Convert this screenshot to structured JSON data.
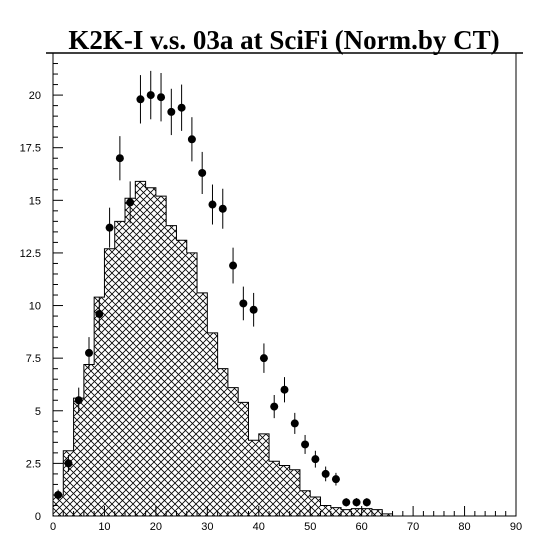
{
  "chart_data": {
    "type": "histogram_with_points",
    "title": "K2K-I v.s. 03a at SciFi (Norm.by CT)",
    "xlabel": "",
    "ylabel": "",
    "xlim": [
      0,
      90
    ],
    "ylim": [
      0,
      22
    ],
    "x_ticks": [
      "0",
      "10",
      "20",
      "30",
      "40",
      "50",
      "60",
      "70",
      "80",
      "90"
    ],
    "y_ticks": [
      "0",
      "2.5",
      "5",
      "7.5",
      "10",
      "12.5",
      "15",
      "17.5",
      "20"
    ],
    "histogram": {
      "fill": "cross-hatch",
      "bin_width": 2,
      "bins": [
        {
          "x": 0,
          "y": 1.0
        },
        {
          "x": 2,
          "y": 3.1
        },
        {
          "x": 4,
          "y": 5.6
        },
        {
          "x": 6,
          "y": 7.2
        },
        {
          "x": 8,
          "y": 10.4
        },
        {
          "x": 10,
          "y": 12.7
        },
        {
          "x": 12,
          "y": 14.0
        },
        {
          "x": 14,
          "y": 15.1
        },
        {
          "x": 16,
          "y": 15.9
        },
        {
          "x": 18,
          "y": 15.6
        },
        {
          "x": 20,
          "y": 15.2
        },
        {
          "x": 22,
          "y": 13.8
        },
        {
          "x": 24,
          "y": 13.1
        },
        {
          "x": 26,
          "y": 12.5
        },
        {
          "x": 28,
          "y": 10.6
        },
        {
          "x": 30,
          "y": 8.7
        },
        {
          "x": 32,
          "y": 7.0
        },
        {
          "x": 34,
          "y": 6.1
        },
        {
          "x": 36,
          "y": 5.4
        },
        {
          "x": 38,
          "y": 3.6
        },
        {
          "x": 40,
          "y": 3.9
        },
        {
          "x": 42,
          "y": 2.6
        },
        {
          "x": 44,
          "y": 2.4
        },
        {
          "x": 46,
          "y": 2.2
        },
        {
          "x": 48,
          "y": 1.2
        },
        {
          "x": 50,
          "y": 0.9
        },
        {
          "x": 52,
          "y": 0.5
        },
        {
          "x": 54,
          "y": 0.4
        },
        {
          "x": 56,
          "y": 0.3
        },
        {
          "x": 58,
          "y": 0.35
        },
        {
          "x": 60,
          "y": 0.35
        },
        {
          "x": 62,
          "y": 0.3
        },
        {
          "x": 64,
          "y": 0.1
        },
        {
          "x": 66,
          "y": 0.0
        }
      ]
    },
    "points": [
      {
        "x": 1,
        "y": 1.0,
        "err": 0.25
      },
      {
        "x": 3,
        "y": 2.5,
        "err": 0.4
      },
      {
        "x": 5,
        "y": 5.5,
        "err": 0.6
      },
      {
        "x": 7,
        "y": 7.75,
        "err": 0.75
      },
      {
        "x": 9,
        "y": 9.6,
        "err": 0.8
      },
      {
        "x": 11,
        "y": 13.7,
        "err": 0.95
      },
      {
        "x": 13,
        "y": 17.0,
        "err": 1.05
      },
      {
        "x": 15,
        "y": 14.9,
        "err": 1.0
      },
      {
        "x": 17,
        "y": 19.8,
        "err": 1.15
      },
      {
        "x": 19,
        "y": 20.0,
        "err": 1.15
      },
      {
        "x": 21,
        "y": 19.9,
        "err": 1.15
      },
      {
        "x": 23,
        "y": 19.2,
        "err": 1.1
      },
      {
        "x": 25,
        "y": 19.4,
        "err": 1.1
      },
      {
        "x": 27,
        "y": 17.9,
        "err": 1.05
      },
      {
        "x": 29,
        "y": 16.3,
        "err": 1.0
      },
      {
        "x": 31,
        "y": 14.8,
        "err": 0.95
      },
      {
        "x": 33,
        "y": 14.6,
        "err": 0.95
      },
      {
        "x": 35,
        "y": 11.9,
        "err": 0.85
      },
      {
        "x": 37,
        "y": 10.1,
        "err": 0.8
      },
      {
        "x": 39,
        "y": 9.8,
        "err": 0.8
      },
      {
        "x": 41,
        "y": 7.5,
        "err": 0.7
      },
      {
        "x": 43,
        "y": 5.2,
        "err": 0.55
      },
      {
        "x": 45,
        "y": 6.0,
        "err": 0.6
      },
      {
        "x": 47,
        "y": 4.4,
        "err": 0.5
      },
      {
        "x": 49,
        "y": 3.4,
        "err": 0.45
      },
      {
        "x": 51,
        "y": 2.7,
        "err": 0.4
      },
      {
        "x": 53,
        "y": 2.0,
        "err": 0.35
      },
      {
        "x": 55,
        "y": 1.75,
        "err": 0.3
      },
      {
        "x": 57,
        "y": 0.65,
        "err": 0.2
      },
      {
        "x": 59,
        "y": 0.65,
        "err": 0.2
      },
      {
        "x": 61,
        "y": 0.65,
        "err": 0.2
      }
    ],
    "colors": {
      "background": "#ffffff",
      "ink": "#000000"
    }
  }
}
